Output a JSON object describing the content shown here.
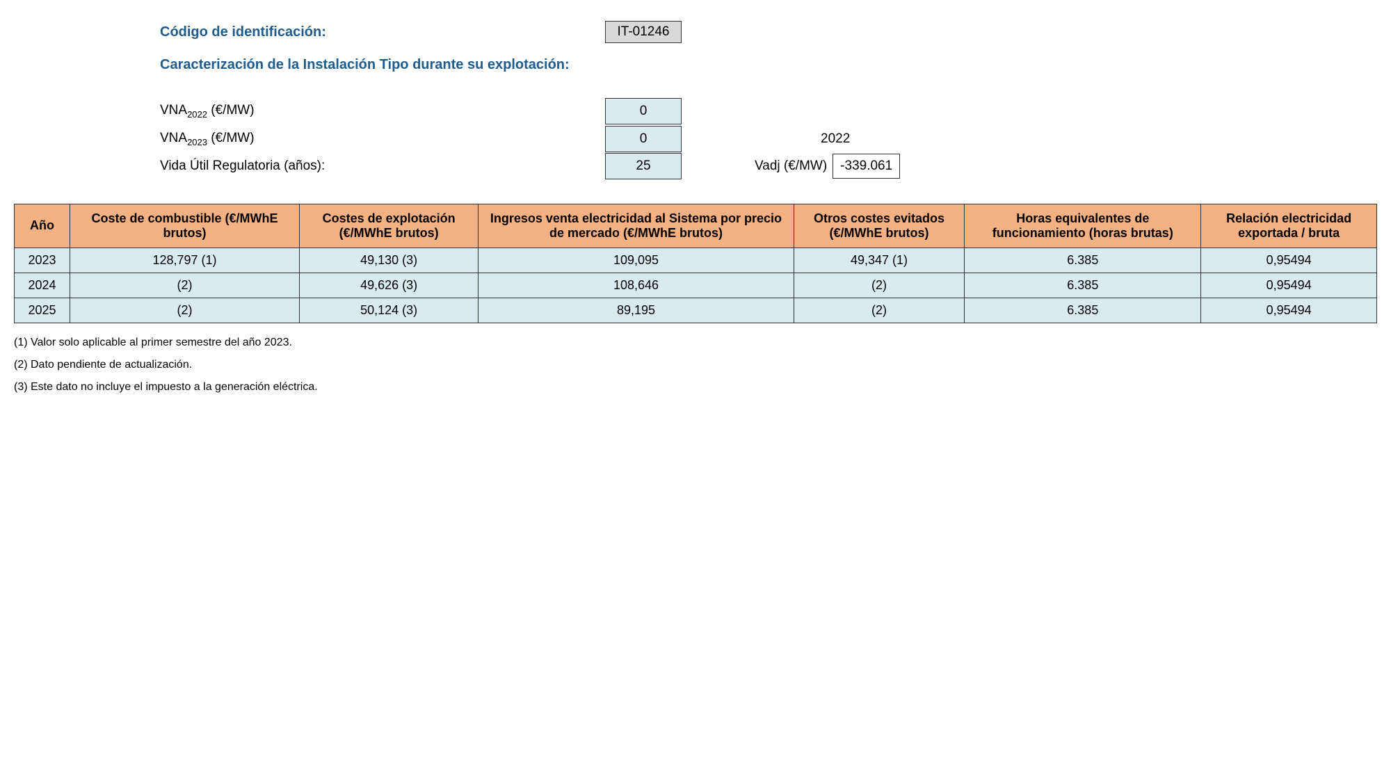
{
  "header": {
    "code_label": "Código de identificación:",
    "code_value": "IT-01246",
    "subtitle": "Caracterización de la Instalación Tipo durante su explotación:"
  },
  "params": {
    "vna2022": {
      "label_prefix": "VNA",
      "label_sub": "2022",
      "label_suffix": " (€/MW)",
      "value": "0"
    },
    "vna2023": {
      "label_prefix": "VNA",
      "label_sub": "2023",
      "label_suffix": " (€/MW)",
      "value": "0"
    },
    "vida": {
      "label": "Vida Útil Regulatoria (años):",
      "value": "25"
    },
    "side_year": "2022",
    "vadj": {
      "label": "Vadj (€/MW)",
      "value": "-339.061"
    }
  },
  "table": {
    "headers": {
      "year": "Año",
      "fuel_cost": "Coste de combustible (€/MWhE brutos)",
      "op_cost": "Costes de explotación (€/MWhE brutos)",
      "revenue": "Ingresos venta electricidad al Sistema por precio de mercado (€/MWhE brutos)",
      "avoided": "Otros costes evitados (€/MWhE brutos)",
      "hours": "Horas equivalentes de funcionamiento (horas brutas)",
      "ratio": "Relación electricidad exportada / bruta"
    },
    "rows": [
      {
        "year": "2023",
        "fuel_cost": "128,797 (1)",
        "op_cost": "49,130 (3)",
        "revenue": "109,095",
        "avoided": "49,347 (1)",
        "hours": "6.385",
        "ratio": "0,95494"
      },
      {
        "year": "2024",
        "fuel_cost": "(2)",
        "op_cost": "49,626 (3)",
        "revenue": "108,646",
        "avoided": "(2)",
        "hours": "6.385",
        "ratio": "0,95494"
      },
      {
        "year": "2025",
        "fuel_cost": "(2)",
        "op_cost": "50,124 (3)",
        "revenue": "89,195",
        "avoided": "(2)",
        "hours": "6.385",
        "ratio": "0,95494"
      }
    ]
  },
  "footnotes": {
    "n1": "(1) Valor solo aplicable al primer semestre del año 2023.",
    "n2": "(2) Dato pendiente de actualización.",
    "n3": "(3) Este dato no incluye el impuesto a la generación eléctrica."
  },
  "colors": {
    "header_bg": "#f4b183",
    "cell_bg": "#d9eaf0",
    "title_color": "#1f5c8b",
    "code_bg": "#d9d9d9",
    "border": "#333333"
  }
}
